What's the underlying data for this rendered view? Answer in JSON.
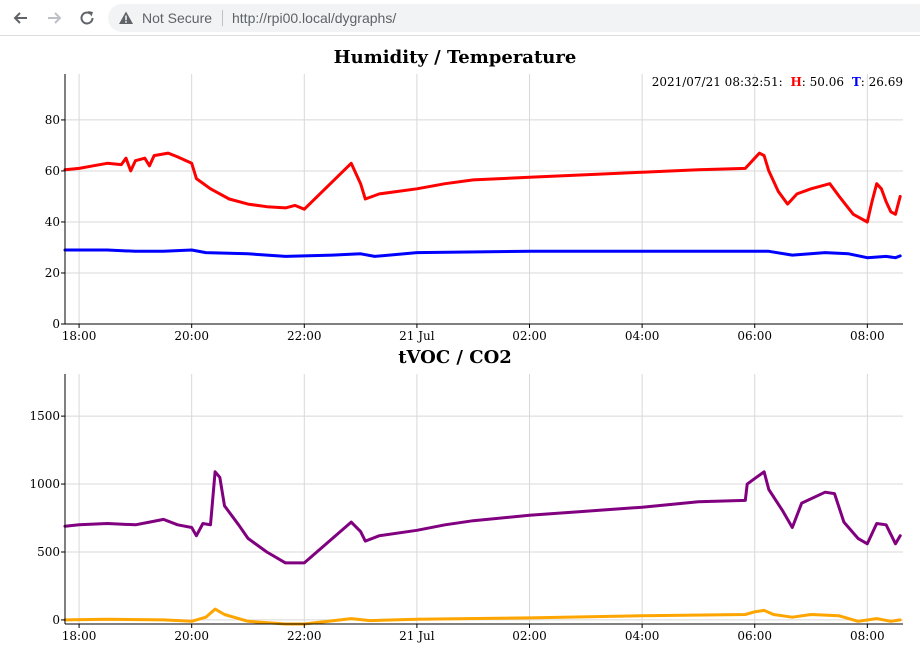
{
  "browser": {
    "security_label": "Not Secure",
    "url": "http://rpi00.local/dygraphs/"
  },
  "chart_data": [
    {
      "type": "line",
      "title": "Humidity / Temperature",
      "x_ticks": [
        "18:00",
        "20:00",
        "22:00",
        "21 Jul",
        "02:00",
        "04:00",
        "06:00",
        "08:00"
      ],
      "y_ticks": [
        "0",
        "20",
        "40",
        "60",
        "80"
      ],
      "ylim": [
        0,
        98
      ],
      "xlim": [
        "2021-07-20 17:45",
        "2021-07-21 08:38"
      ],
      "grid": true,
      "legend": {
        "placement": "top-right",
        "timestamp": "2021/07/21 08:32:51:",
        "entries": [
          {
            "label": "H",
            "value": "50.06"
          },
          {
            "label": "T",
            "value": "26.69"
          }
        ]
      },
      "series": [
        {
          "color": "#ff0000",
          "points": [
            [
              "2021-07-20 17:45",
              60.5
            ],
            [
              "2021-07-20 18:00",
              61
            ],
            [
              "2021-07-20 18:15",
              62
            ],
            [
              "2021-07-20 18:30",
              63
            ],
            [
              "2021-07-20 18:45",
              62.5
            ],
            [
              "2021-07-20 18:50",
              65
            ],
            [
              "2021-07-20 18:55",
              60
            ],
            [
              "2021-07-20 19:00",
              64
            ],
            [
              "2021-07-20 19:10",
              65
            ],
            [
              "2021-07-20 19:15",
              62
            ],
            [
              "2021-07-20 19:20",
              66
            ],
            [
              "2021-07-20 19:35",
              67
            ],
            [
              "2021-07-20 19:45",
              65.5
            ],
            [
              "2021-07-20 20:00",
              63
            ],
            [
              "2021-07-20 20:05",
              57
            ],
            [
              "2021-07-20 20:20",
              53
            ],
            [
              "2021-07-20 20:40",
              49
            ],
            [
              "2021-07-20 21:00",
              47
            ],
            [
              "2021-07-20 21:20",
              46
            ],
            [
              "2021-07-20 21:40",
              45.5
            ],
            [
              "2021-07-20 21:50",
              46.5
            ],
            [
              "2021-07-20 22:00",
              45
            ],
            [
              "2021-07-20 22:50",
              63
            ],
            [
              "2021-07-20 23:00",
              55
            ],
            [
              "2021-07-20 23:05",
              49
            ],
            [
              "2021-07-20 23:20",
              51
            ],
            [
              "2021-07-21 00:00",
              53
            ],
            [
              "2021-07-21 00:30",
              55
            ],
            [
              "2021-07-21 01:00",
              56.5
            ],
            [
              "2021-07-21 02:00",
              57.5
            ],
            [
              "2021-07-21 03:00",
              58.5
            ],
            [
              "2021-07-21 04:00",
              59.5
            ],
            [
              "2021-07-21 05:00",
              60.5
            ],
            [
              "2021-07-21 05:50",
              61
            ],
            [
              "2021-07-21 06:00",
              65
            ],
            [
              "2021-07-21 06:05",
              67
            ],
            [
              "2021-07-21 06:10",
              66
            ],
            [
              "2021-07-21 06:15",
              60
            ],
            [
              "2021-07-21 06:25",
              52
            ],
            [
              "2021-07-21 06:35",
              47
            ],
            [
              "2021-07-21 06:45",
              51
            ],
            [
              "2021-07-21 07:00",
              53
            ],
            [
              "2021-07-21 07:20",
              55
            ],
            [
              "2021-07-21 07:30",
              50
            ],
            [
              "2021-07-21 07:45",
              43
            ],
            [
              "2021-07-21 08:00",
              40
            ],
            [
              "2021-07-21 08:05",
              48
            ],
            [
              "2021-07-21 08:10",
              55
            ],
            [
              "2021-07-21 08:15",
              53
            ],
            [
              "2021-07-21 08:20",
              48
            ],
            [
              "2021-07-21 08:25",
              44
            ],
            [
              "2021-07-21 08:30",
              43
            ],
            [
              "2021-07-21 08:35",
              50
            ]
          ]
        },
        {
          "color": "#0000ff",
          "points": [
            [
              "2021-07-20 17:45",
              29
            ],
            [
              "2021-07-20 18:30",
              29
            ],
            [
              "2021-07-20 19:00",
              28.5
            ],
            [
              "2021-07-20 19:30",
              28.5
            ],
            [
              "2021-07-20 20:00",
              29
            ],
            [
              "2021-07-20 20:15",
              28
            ],
            [
              "2021-07-20 21:00",
              27.5
            ],
            [
              "2021-07-20 21:40",
              26.5
            ],
            [
              "2021-07-20 22:30",
              27
            ],
            [
              "2021-07-20 23:00",
              27.5
            ],
            [
              "2021-07-20 23:15",
              26.5
            ],
            [
              "2021-07-21 00:00",
              28
            ],
            [
              "2021-07-21 02:00",
              28.5
            ],
            [
              "2021-07-21 04:00",
              28.5
            ],
            [
              "2021-07-21 06:00",
              28.5
            ],
            [
              "2021-07-21 06:15",
              28.5
            ],
            [
              "2021-07-21 06:40",
              27
            ],
            [
              "2021-07-21 07:15",
              28
            ],
            [
              "2021-07-21 07:40",
              27.5
            ],
            [
              "2021-07-21 08:00",
              26
            ],
            [
              "2021-07-21 08:20",
              26.5
            ],
            [
              "2021-07-21 08:30",
              26
            ],
            [
              "2021-07-21 08:35",
              26.7
            ]
          ]
        }
      ]
    },
    {
      "type": "line",
      "title": "tVOC / CO2",
      "x_ticks": [
        "18:00",
        "20:00",
        "22:00",
        "21 Jul",
        "02:00",
        "04:00",
        "06:00",
        "08:00"
      ],
      "y_ticks": [
        "0",
        "500",
        "1000",
        "1500"
      ],
      "ylim": [
        -30,
        1810
      ],
      "xlim": [
        "2021-07-20 17:45",
        "2021-07-21 08:38"
      ],
      "grid": true,
      "series": [
        {
          "color": "#800080",
          "points": [
            [
              "2021-07-20 17:45",
              690
            ],
            [
              "2021-07-20 18:00",
              700
            ],
            [
              "2021-07-20 18:30",
              710
            ],
            [
              "2021-07-20 19:00",
              700
            ],
            [
              "2021-07-20 19:15",
              720
            ],
            [
              "2021-07-20 19:30",
              740
            ],
            [
              "2021-07-20 19:45",
              700
            ],
            [
              "2021-07-20 20:00",
              680
            ],
            [
              "2021-07-20 20:05",
              620
            ],
            [
              "2021-07-20 20:12",
              710
            ],
            [
              "2021-07-20 20:20",
              700
            ],
            [
              "2021-07-20 20:25",
              1090
            ],
            [
              "2021-07-20 20:30",
              1050
            ],
            [
              "2021-07-20 20:35",
              840
            ],
            [
              "2021-07-20 20:50",
              700
            ],
            [
              "2021-07-20 21:00",
              600
            ],
            [
              "2021-07-20 21:20",
              500
            ],
            [
              "2021-07-20 21:40",
              420
            ],
            [
              "2021-07-20 22:00",
              420
            ],
            [
              "2021-07-20 22:50",
              720
            ],
            [
              "2021-07-20 23:00",
              650
            ],
            [
              "2021-07-20 23:05",
              580
            ],
            [
              "2021-07-20 23:20",
              620
            ],
            [
              "2021-07-21 00:00",
              660
            ],
            [
              "2021-07-21 00:30",
              700
            ],
            [
              "2021-07-21 01:00",
              730
            ],
            [
              "2021-07-21 02:00",
              770
            ],
            [
              "2021-07-21 03:00",
              800
            ],
            [
              "2021-07-21 04:00",
              830
            ],
            [
              "2021-07-21 05:00",
              870
            ],
            [
              "2021-07-21 05:50",
              880
            ],
            [
              "2021-07-21 05:52",
              1000
            ],
            [
              "2021-07-21 06:00",
              1040
            ],
            [
              "2021-07-21 06:10",
              1090
            ],
            [
              "2021-07-21 06:15",
              960
            ],
            [
              "2021-07-21 06:30",
              800
            ],
            [
              "2021-07-21 06:40",
              680
            ],
            [
              "2021-07-21 06:50",
              860
            ],
            [
              "2021-07-21 07:15",
              940
            ],
            [
              "2021-07-21 07:25",
              930
            ],
            [
              "2021-07-21 07:35",
              720
            ],
            [
              "2021-07-21 07:50",
              600
            ],
            [
              "2021-07-21 08:00",
              560
            ],
            [
              "2021-07-21 08:10",
              710
            ],
            [
              "2021-07-21 08:20",
              700
            ],
            [
              "2021-07-21 08:30",
              560
            ],
            [
              "2021-07-21 08:35",
              620
            ]
          ]
        },
        {
          "color": "#ffa500",
          "points": [
            [
              "2021-07-20 17:45",
              0
            ],
            [
              "2021-07-20 18:30",
              5
            ],
            [
              "2021-07-20 19:30",
              0
            ],
            [
              "2021-07-20 20:00",
              -10
            ],
            [
              "2021-07-20 20:15",
              20
            ],
            [
              "2021-07-20 20:25",
              80
            ],
            [
              "2021-07-20 20:35",
              40
            ],
            [
              "2021-07-20 21:00",
              -10
            ],
            [
              "2021-07-20 21:40",
              -30
            ],
            [
              "2021-07-20 22:00",
              -30
            ],
            [
              "2021-07-20 22:50",
              10
            ],
            [
              "2021-07-20 23:10",
              -5
            ],
            [
              "2021-07-21 00:00",
              5
            ],
            [
              "2021-07-21 02:00",
              15
            ],
            [
              "2021-07-21 04:00",
              30
            ],
            [
              "2021-07-21 05:50",
              40
            ],
            [
              "2021-07-21 06:00",
              60
            ],
            [
              "2021-07-21 06:10",
              70
            ],
            [
              "2021-07-21 06:20",
              40
            ],
            [
              "2021-07-21 06:40",
              20
            ],
            [
              "2021-07-21 07:00",
              40
            ],
            [
              "2021-07-21 07:30",
              30
            ],
            [
              "2021-07-21 07:50",
              -10
            ],
            [
              "2021-07-21 08:10",
              10
            ],
            [
              "2021-07-21 08:25",
              -10
            ],
            [
              "2021-07-21 08:35",
              0
            ]
          ]
        }
      ]
    }
  ]
}
